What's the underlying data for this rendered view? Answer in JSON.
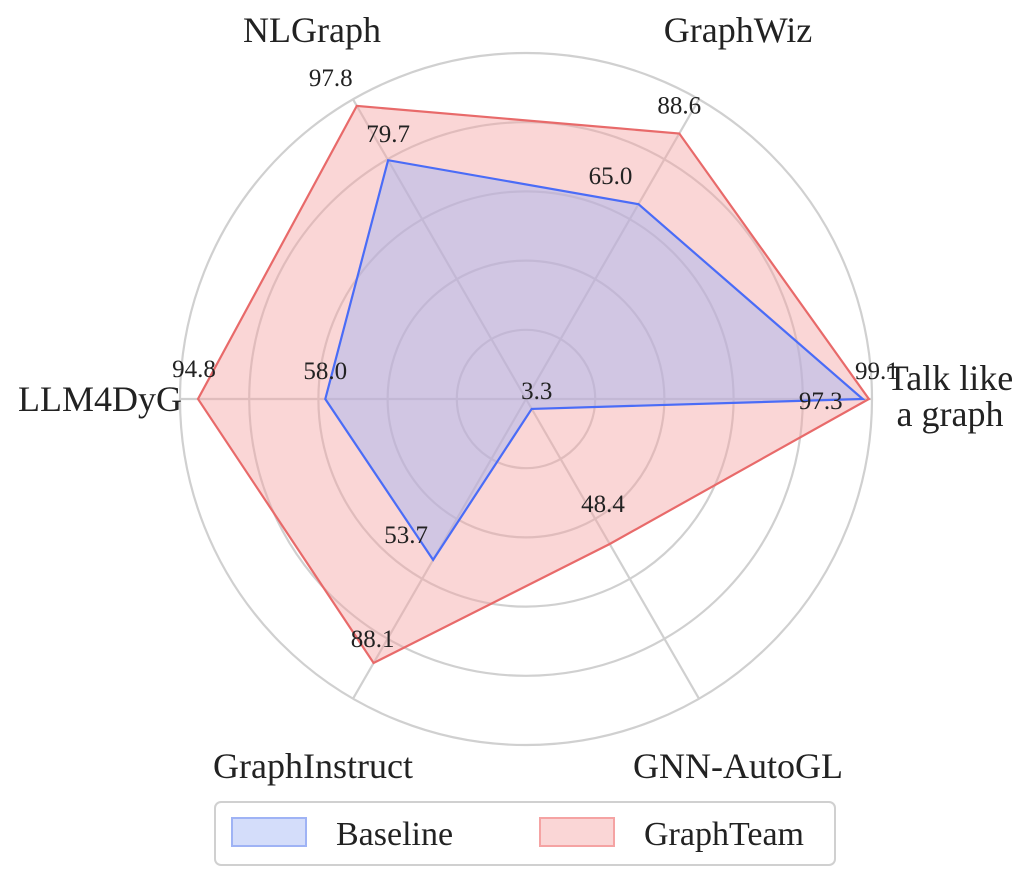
{
  "chart_data": {
    "type": "radar",
    "axes": [
      "Talk like\na graph",
      "GraphWiz",
      "NLGraph",
      "LLM4DyG",
      "GraphInstruct",
      "GNN-AutoGL"
    ],
    "rlim": [
      0,
      100
    ],
    "grid": true,
    "legend_placement": "bottom-center",
    "series": [
      {
        "name": "Baseline",
        "values": [
          97.3,
          65.0,
          79.7,
          58.0,
          53.7,
          3.3
        ],
        "labels": [
          "97.3",
          "65.0",
          "79.7",
          "58.0",
          "53.7",
          "3.3"
        ],
        "line_color": "#4a6cf7",
        "fill_color": "#9fb3f5"
      },
      {
        "name": "GraphTeam",
        "values": [
          99.1,
          88.6,
          97.8,
          94.8,
          88.1,
          48.4
        ],
        "labels": [
          "99.1",
          "88.6",
          "97.8",
          "94.8",
          "88.1",
          "48.4"
        ],
        "line_color": "#e86a6a",
        "fill_color": "#f5a3a3"
      }
    ]
  }
}
